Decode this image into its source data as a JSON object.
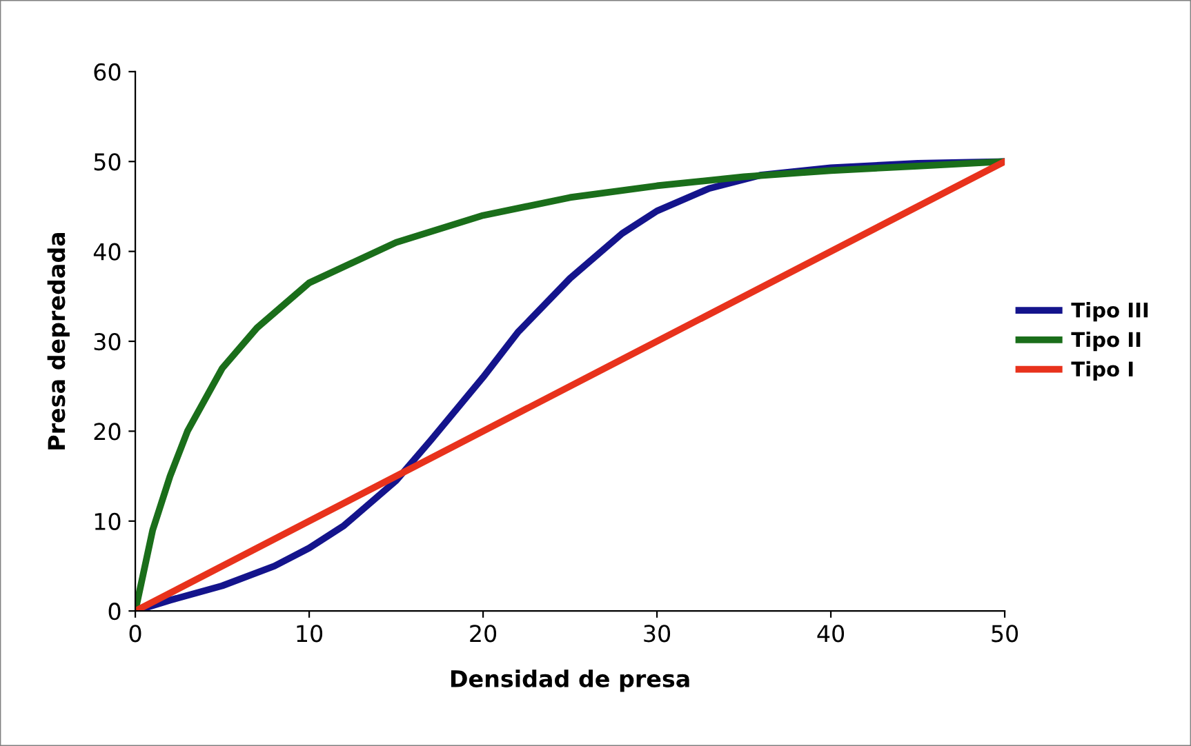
{
  "chart_data": {
    "type": "line",
    "xlabel": "Densidad de presa",
    "ylabel": "Presa depredada",
    "xlim": [
      0,
      50
    ],
    "xticks": [
      0,
      10,
      20,
      30,
      40,
      50
    ],
    "ylim": [
      0,
      60
    ],
    "yticks": [
      0,
      10,
      20,
      30,
      40,
      50,
      60
    ],
    "grid": false,
    "legend": "right",
    "marker": "none",
    "line_style": "solid",
    "series": [
      {
        "name": "Tipo III",
        "color": "#14148c",
        "x": [
          0,
          2,
          5,
          8,
          10,
          12,
          15,
          17,
          20,
          22,
          25,
          28,
          30,
          33,
          36,
          40,
          45,
          50
        ],
        "values": [
          0,
          1.2,
          2.8,
          5,
          7,
          9.5,
          14.5,
          19,
          26,
          31,
          37,
          42,
          44.5,
          47,
          48.5,
          49.3,
          49.8,
          50
        ]
      },
      {
        "name": "Tipo II",
        "color": "#1a6e1a",
        "x": [
          0,
          1,
          2,
          3,
          5,
          7,
          10,
          15,
          20,
          25,
          30,
          35,
          40,
          45,
          50
        ],
        "values": [
          0,
          9,
          15,
          20,
          27,
          31.5,
          36.5,
          41,
          44,
          46,
          47.3,
          48.3,
          49,
          49.5,
          50
        ]
      },
      {
        "name": "Tipo I",
        "color": "#e8321c",
        "x": [
          0,
          50
        ],
        "values": [
          0,
          50
        ]
      }
    ]
  }
}
